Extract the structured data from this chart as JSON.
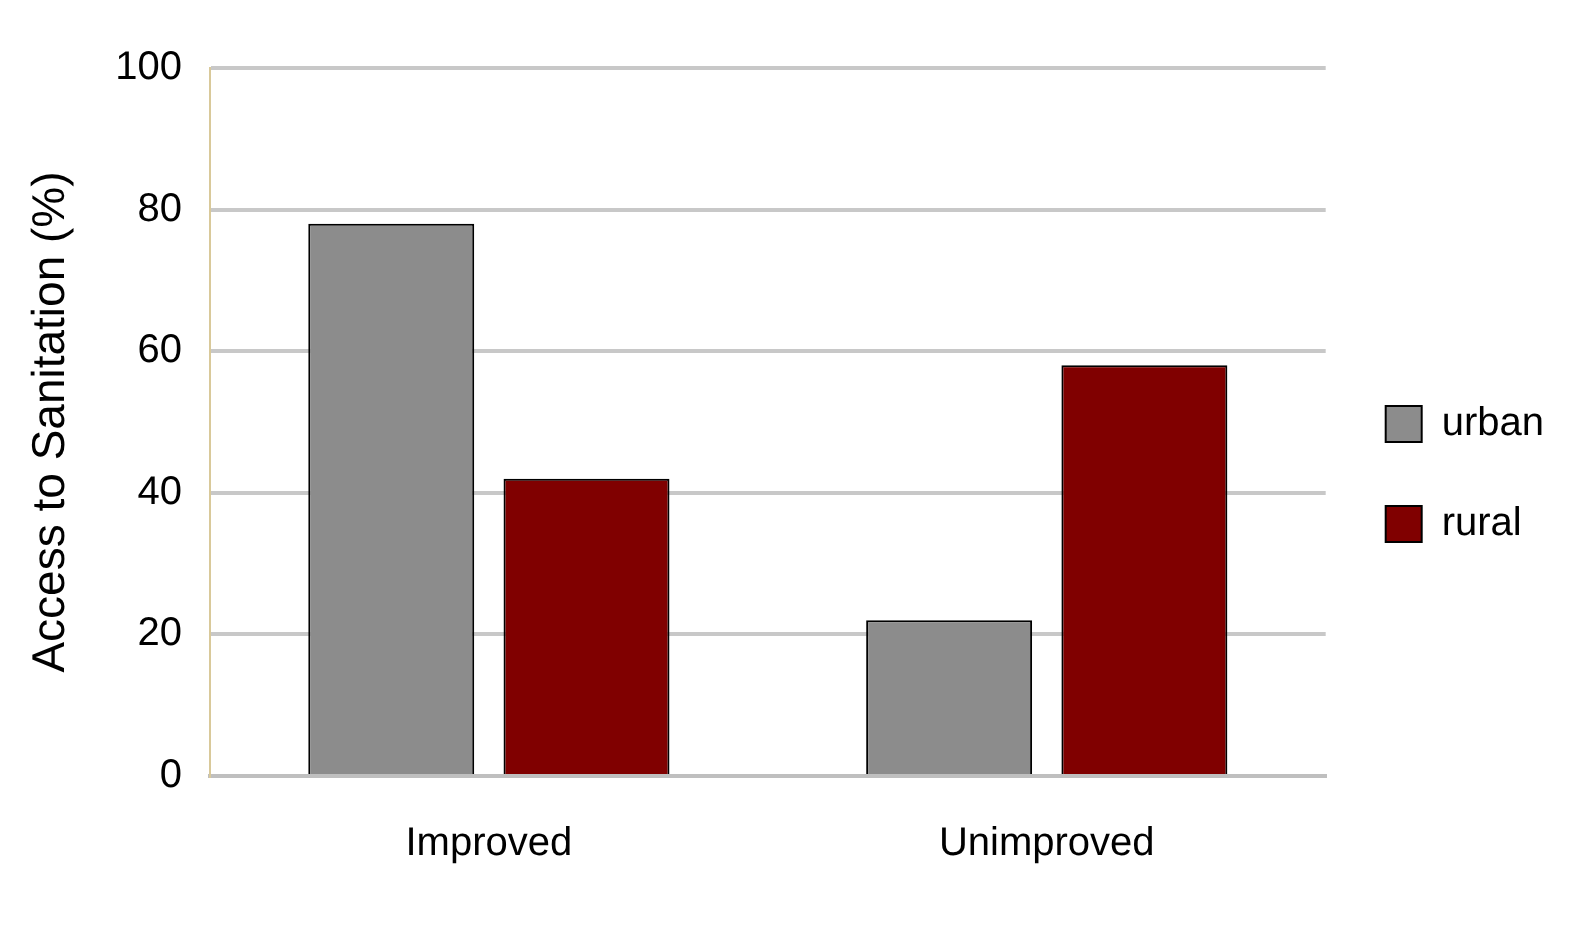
{
  "chart_data": {
    "type": "bar",
    "ylabel": "Access to Sanitation (%)",
    "categories": [
      "Improved",
      "Unimproved"
    ],
    "series": [
      {
        "name": "urban",
        "color": "#8c8c8c",
        "values": [
          78,
          22
        ]
      },
      {
        "name": "rural",
        "color": "#800000",
        "values": [
          42,
          58
        ]
      }
    ],
    "ylim": [
      0,
      100
    ],
    "yticks": [
      0,
      20,
      40,
      60,
      80,
      100
    ],
    "grid": "y",
    "legend": "right"
  }
}
